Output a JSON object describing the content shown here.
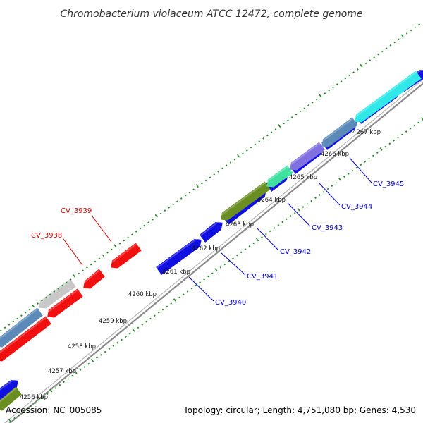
{
  "title": "Chromobacterium violaceum ATCC 12472, complete genome",
  "footer": {
    "accession": "Accession: NC_005085",
    "summary": "Topology: circular; Length: 4,751,080 bp; Genes: 4,530"
  },
  "colors": {
    "backbone": "#8a8a8a",
    "ticks": "#228b22",
    "label_forward": "#0000cc",
    "label_reverse": "#dd0000",
    "gene_blue": "#1010e0",
    "gene_red": "#f01010",
    "gene_cyan": "#30e8e8",
    "gene_steel": "#5b8ab8",
    "gene_gray": "#c8c8c8",
    "gene_olive": "#6b8e23",
    "gene_aqua": "#40e0a0",
    "gene_lavender": "#8070e0"
  },
  "ticks": [
    "4256 kbp",
    "4257 kbp",
    "4258 kbp",
    "4259 kbp",
    "4260 kbp",
    "4261 kbp",
    "4262 kbp",
    "4263 kbp",
    "4264 kbp",
    "4265 kbp",
    "4266 kbp",
    "4267 kbp"
  ],
  "gene_labels": [
    {
      "text": "CV_3938",
      "strand": "reverse"
    },
    {
      "text": "CV_3939",
      "strand": "reverse"
    },
    {
      "text": "CV_3940",
      "strand": "forward"
    },
    {
      "text": "CV_3941",
      "strand": "forward"
    },
    {
      "text": "CV_3942",
      "strand": "forward"
    },
    {
      "text": "CV_3943",
      "strand": "forward"
    },
    {
      "text": "CV_3944",
      "strand": "forward"
    },
    {
      "text": "CV_3945",
      "strand": "forward"
    }
  ]
}
